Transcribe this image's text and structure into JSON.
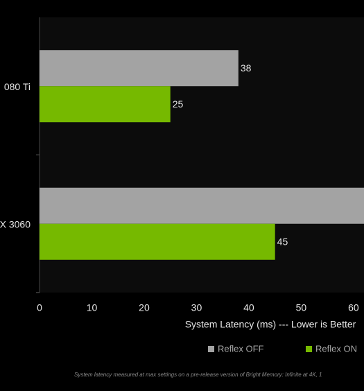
{
  "chart_data": {
    "type": "hbar",
    "categories": [
      "080 Ti",
      "X 3060"
    ],
    "series": [
      {
        "name": "Reflex OFF",
        "color": "#a3a3a3",
        "values": [
          38,
          65
        ]
      },
      {
        "name": "Reflex ON",
        "color": "#76b900",
        "values": [
          25,
          45
        ]
      }
    ],
    "xlim": [
      0,
      62
    ],
    "xticks": [
      0,
      10,
      20,
      30,
      40,
      50,
      60
    ],
    "xlabel": "System Latency (ms) --- Lower is Better",
    "legend": "bottom-right",
    "footnote": "System latency measured at max settings on a pre-release version of Bright Memory: Infinite at 4K, 1"
  }
}
